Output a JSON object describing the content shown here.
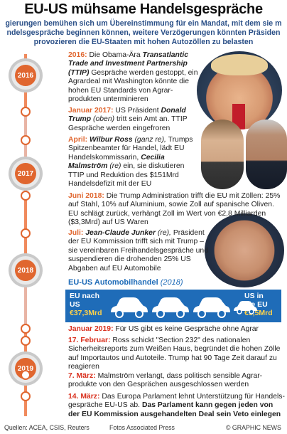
{
  "title": "EU-US mühsame Handelsgespräche",
  "intro": {
    "line1": "gierungen bemühen sich um Übereinstimmung für ein Mandat, mit dem sie m",
    "line2": "ndelsgespräche beginnen können, weitere Verzögerungen könnten Präsiden",
    "line3": "provozieren die EU-Staaten mit hohen Autozöllen zu belasten"
  },
  "years": [
    "2016",
    "2017",
    "2018",
    "2019"
  ],
  "entries": {
    "e2016": {
      "date": "2016:",
      "t1": " Die Obama-Ära ",
      "b1": "Transatlantic Trade and Investment Partnership (TTIP)",
      "t2": " Gespräche werden gestoppt, ein Agrardeal mit Washington könnte die hohen EU Standards von Agrar-produkten unterminieren"
    },
    "e2017a": {
      "date": "Januar 2017:",
      "t1": " US Präsident ",
      "b1": "Donald Trump",
      "i1": " (oben)",
      "t2": " tritt sein Amt an. TTIP Gespräche werden eingefroren"
    },
    "e2017b": {
      "date": "April:",
      "b1": " Wilbur Ross",
      "i1": " (ganz re),",
      "t1": " Trumps Spitzenbeamter für Handel, lädt EU Handelskommissarin, ",
      "b2": "Cecilia Malmström",
      "i2": " (re)",
      "t2": " ein, sie diskutieren TTIP und Reduktion des $151Mrd Handelsdefizit mit der EU"
    },
    "e2018a": {
      "date": "Juni 2018:",
      "t1": " Die Trump Administration trifft die EU mit Zöllen: 25% auf Stahl, 10% auf Aluminium, sowie Zoll auf spanische Oliven. EU schlägt zurück, verhängt Zoll im Wert von €2,8 Milliarden ($3,3Mrd) auf US Waren"
    },
    "e2018b": {
      "date": "Juli:",
      "b1": " Jean-Claude Junker",
      "i1": " (re),",
      "t1": " Präsident der EU Kommission trifft sich mit Trump – sie vereinbaren Freihandelsgespräche und suspendieren die drohenden 25% US Abgaben auf EU Automobile"
    },
    "e2019a": {
      "date": "Januar 2019:",
      "t1": " Für US gibt es keine Gespräche ohne Agrar"
    },
    "e2019b": {
      "date": "17. Februar:",
      "t1": " Ross schickt \"Section 232\" des nationalen Sicherheitsreports zum Weißen Haus, begründet die hohen Zölle auf Importautos und Autoteile. Trump hat 90 Tage Zeit darauf zu reagieren"
    },
    "e2019c": {
      "date": "7. März:",
      "t1": " Malmström verlangt, dass politisch sensible Agrar-produkte von den Gesprächen ausgeschlossen werden"
    },
    "e2019d": {
      "date": "14. März:",
      "t1": " Das Europa Parlament lehnt Unterstützung für Handels-gespräche EU-US ab. ",
      "b1": "Das Parlament kann gegen jeden von der EU Kommission ausgehandelten Deal sein Veto einlegen"
    }
  },
  "auto": {
    "title": "EU-US Automobilhandel",
    "year": " (2018)",
    "left_label1": "EU nach",
    "left_label2": "US",
    "left_value": "€37,3Mrd",
    "right_label1": "US in",
    "right_label2": "die EU",
    "right_value": "€5,5Mrd",
    "car_count": 4
  },
  "footer": {
    "sources": "Quellen: ACEA, CSIS, Reuters",
    "photos": "Fotos Associated Press",
    "copyright": "© GRAPHIC NEWS"
  },
  "colors": {
    "accent": "#e0662f",
    "red": "#d9301e",
    "blue": "#1f6cb8",
    "intro": "#2a4f87"
  }
}
